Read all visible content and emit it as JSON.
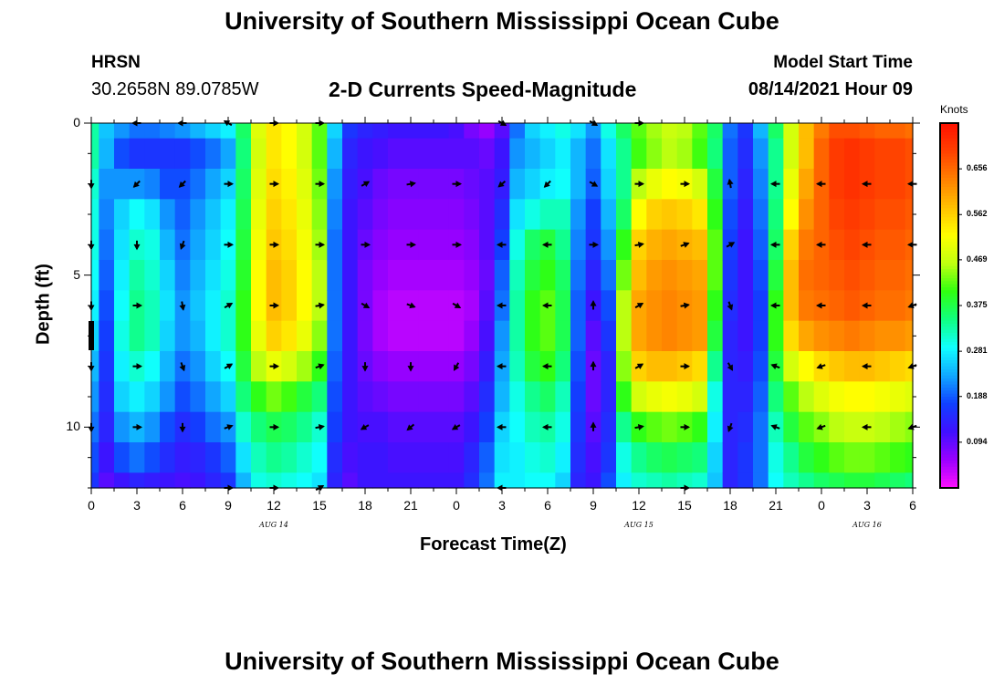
{
  "page": {
    "title_top": "University of Southern Mississippi Ocean Cube",
    "title_bottom": "University of Southern Mississippi Ocean Cube",
    "station_name": "HRSN",
    "station_coords": "30.2658N  89.0785W",
    "model_start_label": "Model Start Time",
    "model_start_value": "08/14/2021 Hour 09",
    "subtitle": "2-D Currents Speed-Magnitude"
  },
  "colors": {
    "palette": [
      "#ff10ff",
      "#9a00ff",
      "#4010ff",
      "#1040ff",
      "#10a8ff",
      "#10ffff",
      "#10ff80",
      "#30ff10",
      "#c0ff10",
      "#ffff00",
      "#ffc000",
      "#ff8000",
      "#ff4000",
      "#ff1000"
    ]
  },
  "chart_data": {
    "type": "heatmap",
    "title": "2-D Currents Speed-Magnitude",
    "xlabel": "Forecast Time(Z)",
    "ylabel": "Depth (ft)",
    "x_tick_labels": [
      "0",
      "3",
      "6",
      "9",
      "12",
      "15",
      "18",
      "21",
      "0",
      "3",
      "6",
      "9",
      "12",
      "15",
      "18",
      "21",
      "0",
      "3",
      "6"
    ],
    "x_range_hours": [
      0,
      54
    ],
    "y_tick_labels": [
      "0",
      "5",
      "10"
    ],
    "y_tick_values": [
      0,
      5,
      10
    ],
    "y_range_ft": [
      0,
      12
    ],
    "date_labels": [
      {
        "text": "AUG  14",
        "hour": 12
      },
      {
        "text": "AUG  15",
        "hour": 36
      },
      {
        "text": "AUG  16",
        "hour": 51
      }
    ],
    "colorbar": {
      "label": "Knots",
      "range": [
        0.0,
        0.75
      ],
      "ticks": [
        "0.656",
        "0.562",
        "0.469",
        "0.375",
        "0.281",
        "0.188",
        "0.094"
      ],
      "tick_values": [
        0.656,
        0.562,
        0.469,
        0.375,
        0.281,
        0.188,
        0.094
      ]
    },
    "depth_rows_ft": [
      0,
      1,
      2,
      3,
      4,
      5,
      6,
      7,
      8,
      9,
      10,
      11,
      12
    ],
    "time_cols_hours": [
      0,
      1,
      2,
      3,
      4,
      5,
      6,
      7,
      8,
      9,
      10,
      11,
      12,
      13,
      14,
      15,
      16,
      17,
      18,
      19,
      20,
      21,
      22,
      23,
      24,
      25,
      26,
      27,
      28,
      29,
      30,
      31,
      32,
      33,
      34,
      35,
      36,
      37,
      38,
      39,
      40,
      41,
      42,
      43,
      44,
      45,
      46,
      47,
      48,
      49,
      50,
      51,
      52,
      53,
      54
    ],
    "speed_by_column_surface_to_bottom": [
      [
        0.33,
        0.33,
        0.31,
        0.3,
        0.3,
        0.29,
        0.28,
        0.26,
        0.24,
        0.22,
        0.2,
        0.18,
        0.16
      ],
      [
        0.25,
        0.24,
        0.22,
        0.21,
        0.2,
        0.19,
        0.18,
        0.17,
        0.16,
        0.15,
        0.14,
        0.12,
        0.1
      ],
      [
        0.22,
        0.18,
        0.22,
        0.26,
        0.27,
        0.28,
        0.29,
        0.3,
        0.28,
        0.26,
        0.22,
        0.18,
        0.12
      ],
      [
        0.2,
        0.16,
        0.22,
        0.29,
        0.31,
        0.33,
        0.34,
        0.34,
        0.31,
        0.28,
        0.24,
        0.2,
        0.14
      ],
      [
        0.2,
        0.16,
        0.21,
        0.27,
        0.3,
        0.31,
        0.32,
        0.32,
        0.29,
        0.26,
        0.22,
        0.18,
        0.13
      ],
      [
        0.21,
        0.16,
        0.18,
        0.22,
        0.24,
        0.26,
        0.27,
        0.26,
        0.24,
        0.22,
        0.18,
        0.15,
        0.12
      ],
      [
        0.22,
        0.16,
        0.18,
        0.19,
        0.2,
        0.21,
        0.22,
        0.22,
        0.2,
        0.18,
        0.15,
        0.13,
        0.11
      ],
      [
        0.24,
        0.18,
        0.2,
        0.22,
        0.23,
        0.24,
        0.25,
        0.24,
        0.22,
        0.2,
        0.17,
        0.14,
        0.12
      ],
      [
        0.26,
        0.2,
        0.23,
        0.25,
        0.26,
        0.27,
        0.28,
        0.28,
        0.26,
        0.23,
        0.2,
        0.16,
        0.14
      ],
      [
        0.28,
        0.23,
        0.26,
        0.28,
        0.29,
        0.3,
        0.31,
        0.31,
        0.29,
        0.26,
        0.22,
        0.19,
        0.16
      ],
      [
        0.36,
        0.35,
        0.36,
        0.37,
        0.38,
        0.39,
        0.4,
        0.4,
        0.38,
        0.35,
        0.31,
        0.27,
        0.24
      ],
      [
        0.49,
        0.48,
        0.49,
        0.5,
        0.51,
        0.52,
        0.52,
        0.5,
        0.46,
        0.4,
        0.35,
        0.32,
        0.3
      ],
      [
        0.54,
        0.54,
        0.55,
        0.56,
        0.57,
        0.58,
        0.58,
        0.56,
        0.5,
        0.43,
        0.37,
        0.34,
        0.31
      ],
      [
        0.52,
        0.52,
        0.53,
        0.54,
        0.55,
        0.56,
        0.56,
        0.54,
        0.48,
        0.41,
        0.36,
        0.33,
        0.3
      ],
      [
        0.48,
        0.48,
        0.49,
        0.5,
        0.51,
        0.52,
        0.52,
        0.5,
        0.45,
        0.38,
        0.34,
        0.31,
        0.29
      ],
      [
        0.42,
        0.42,
        0.43,
        0.44,
        0.45,
        0.46,
        0.46,
        0.44,
        0.4,
        0.35,
        0.31,
        0.29,
        0.27
      ],
      [
        0.26,
        0.24,
        0.22,
        0.21,
        0.2,
        0.2,
        0.2,
        0.2,
        0.19,
        0.18,
        0.17,
        0.15,
        0.14
      ],
      [
        0.16,
        0.14,
        0.13,
        0.12,
        0.12,
        0.12,
        0.12,
        0.12,
        0.12,
        0.12,
        0.12,
        0.11,
        0.1
      ],
      [
        0.14,
        0.12,
        0.11,
        0.1,
        0.09,
        0.08,
        0.08,
        0.08,
        0.09,
        0.1,
        0.11,
        0.12,
        0.12
      ],
      [
        0.13,
        0.11,
        0.09,
        0.08,
        0.07,
        0.06,
        0.05,
        0.05,
        0.07,
        0.09,
        0.11,
        0.12,
        0.12
      ],
      [
        0.12,
        0.1,
        0.08,
        0.07,
        0.06,
        0.05,
        0.04,
        0.04,
        0.06,
        0.08,
        0.1,
        0.11,
        0.12
      ],
      [
        0.12,
        0.1,
        0.08,
        0.07,
        0.06,
        0.05,
        0.04,
        0.04,
        0.06,
        0.08,
        0.1,
        0.11,
        0.12
      ],
      [
        0.12,
        0.1,
        0.08,
        0.07,
        0.06,
        0.05,
        0.04,
        0.04,
        0.06,
        0.08,
        0.1,
        0.11,
        0.12
      ],
      [
        0.12,
        0.1,
        0.08,
        0.07,
        0.06,
        0.05,
        0.04,
        0.04,
        0.06,
        0.08,
        0.1,
        0.11,
        0.12
      ],
      [
        0.11,
        0.1,
        0.08,
        0.07,
        0.06,
        0.05,
        0.04,
        0.04,
        0.06,
        0.08,
        0.1,
        0.11,
        0.12
      ],
      [
        0.08,
        0.1,
        0.09,
        0.08,
        0.07,
        0.06,
        0.05,
        0.06,
        0.08,
        0.1,
        0.12,
        0.14,
        0.15
      ],
      [
        0.06,
        0.09,
        0.1,
        0.1,
        0.1,
        0.09,
        0.1,
        0.11,
        0.13,
        0.15,
        0.17,
        0.19,
        0.2
      ],
      [
        0.1,
        0.12,
        0.13,
        0.15,
        0.17,
        0.19,
        0.2,
        0.22,
        0.23,
        0.24,
        0.26,
        0.27,
        0.28
      ],
      [
        0.2,
        0.22,
        0.24,
        0.27,
        0.3,
        0.32,
        0.33,
        0.33,
        0.32,
        0.3,
        0.29,
        0.28,
        0.28
      ],
      [
        0.26,
        0.24,
        0.26,
        0.3,
        0.36,
        0.38,
        0.4,
        0.4,
        0.38,
        0.34,
        0.32,
        0.3,
        0.29
      ],
      [
        0.28,
        0.26,
        0.28,
        0.32,
        0.38,
        0.4,
        0.42,
        0.42,
        0.4,
        0.36,
        0.33,
        0.31,
        0.29
      ],
      [
        0.3,
        0.28,
        0.29,
        0.32,
        0.34,
        0.36,
        0.37,
        0.37,
        0.35,
        0.32,
        0.3,
        0.28,
        0.26
      ],
      [
        0.27,
        0.24,
        0.24,
        0.22,
        0.21,
        0.2,
        0.19,
        0.19,
        0.18,
        0.17,
        0.16,
        0.15,
        0.14
      ],
      [
        0.22,
        0.2,
        0.19,
        0.17,
        0.16,
        0.14,
        0.12,
        0.1,
        0.09,
        0.09,
        0.1,
        0.11,
        0.12
      ],
      [
        0.3,
        0.27,
        0.26,
        0.24,
        0.22,
        0.2,
        0.18,
        0.16,
        0.14,
        0.14,
        0.15,
        0.16,
        0.18
      ],
      [
        0.36,
        0.34,
        0.34,
        0.36,
        0.4,
        0.43,
        0.46,
        0.46,
        0.44,
        0.4,
        0.34,
        0.3,
        0.28
      ],
      [
        0.42,
        0.41,
        0.46,
        0.52,
        0.56,
        0.58,
        0.6,
        0.6,
        0.56,
        0.48,
        0.4,
        0.34,
        0.31
      ],
      [
        0.45,
        0.44,
        0.5,
        0.56,
        0.59,
        0.61,
        0.62,
        0.62,
        0.58,
        0.5,
        0.42,
        0.36,
        0.32
      ],
      [
        0.47,
        0.46,
        0.52,
        0.57,
        0.6,
        0.62,
        0.63,
        0.63,
        0.58,
        0.51,
        0.43,
        0.37,
        0.33
      ],
      [
        0.46,
        0.45,
        0.51,
        0.56,
        0.59,
        0.61,
        0.62,
        0.62,
        0.57,
        0.5,
        0.42,
        0.36,
        0.32
      ],
      [
        0.42,
        0.41,
        0.48,
        0.54,
        0.58,
        0.6,
        0.61,
        0.61,
        0.55,
        0.48,
        0.4,
        0.35,
        0.31
      ],
      [
        0.36,
        0.35,
        0.38,
        0.4,
        0.42,
        0.42,
        0.4,
        0.38,
        0.34,
        0.3,
        0.28,
        0.26,
        0.25
      ],
      [
        0.2,
        0.19,
        0.19,
        0.18,
        0.17,
        0.16,
        0.15,
        0.14,
        0.14,
        0.14,
        0.14,
        0.14,
        0.14
      ],
      [
        0.16,
        0.15,
        0.14,
        0.13,
        0.12,
        0.12,
        0.12,
        0.12,
        0.13,
        0.14,
        0.15,
        0.16,
        0.16
      ],
      [
        0.24,
        0.22,
        0.21,
        0.2,
        0.19,
        0.18,
        0.17,
        0.17,
        0.18,
        0.19,
        0.2,
        0.2,
        0.2
      ],
      [
        0.36,
        0.34,
        0.34,
        0.35,
        0.36,
        0.38,
        0.4,
        0.4,
        0.38,
        0.35,
        0.32,
        0.3,
        0.29
      ],
      [
        0.48,
        0.48,
        0.5,
        0.52,
        0.56,
        0.58,
        0.58,
        0.55,
        0.48,
        0.42,
        0.38,
        0.34,
        0.32
      ],
      [
        0.58,
        0.58,
        0.6,
        0.62,
        0.64,
        0.65,
        0.64,
        0.6,
        0.52,
        0.46,
        0.42,
        0.38,
        0.34
      ],
      [
        0.64,
        0.66,
        0.66,
        0.66,
        0.66,
        0.66,
        0.65,
        0.62,
        0.55,
        0.49,
        0.44,
        0.4,
        0.36
      ],
      [
        0.68,
        0.7,
        0.7,
        0.69,
        0.68,
        0.67,
        0.66,
        0.63,
        0.57,
        0.51,
        0.46,
        0.42,
        0.37
      ],
      [
        0.68,
        0.71,
        0.71,
        0.7,
        0.69,
        0.68,
        0.67,
        0.64,
        0.58,
        0.52,
        0.47,
        0.43,
        0.38
      ],
      [
        0.67,
        0.7,
        0.7,
        0.69,
        0.68,
        0.67,
        0.66,
        0.63,
        0.58,
        0.52,
        0.47,
        0.43,
        0.38
      ],
      [
        0.66,
        0.69,
        0.69,
        0.68,
        0.67,
        0.66,
        0.65,
        0.62,
        0.57,
        0.51,
        0.46,
        0.42,
        0.37
      ],
      [
        0.66,
        0.69,
        0.69,
        0.68,
        0.67,
        0.66,
        0.65,
        0.62,
        0.56,
        0.5,
        0.45,
        0.41,
        0.36
      ],
      [
        0.65,
        0.68,
        0.68,
        0.67,
        0.66,
        0.65,
        0.64,
        0.61,
        0.55,
        0.49,
        0.44,
        0.4,
        0.35
      ]
    ],
    "vector_depths_ft": [
      0,
      2,
      4,
      6,
      8,
      10,
      12
    ],
    "vector_times_hours": [
      0,
      3,
      6,
      9,
      12,
      15,
      18,
      21,
      24,
      27,
      30,
      33,
      36,
      39,
      42,
      45,
      48,
      51,
      54
    ],
    "direction_deg_by_time_surface_to_bottom": [
      [
        null,
        180,
        180,
        180,
        180,
        180,
        null
      ],
      [
        270,
        225,
        180,
        90,
        90,
        90,
        null
      ],
      [
        270,
        225,
        200,
        170,
        160,
        180,
        null
      ],
      [
        300,
        90,
        90,
        60,
        60,
        70,
        90
      ],
      [
        90,
        90,
        90,
        90,
        90,
        90,
        90
      ],
      [
        90,
        90,
        90,
        80,
        70,
        80,
        60
      ],
      [
        null,
        60,
        90,
        120,
        180,
        240,
        null
      ],
      [
        null,
        80,
        90,
        110,
        180,
        230,
        null
      ],
      [
        null,
        90,
        90,
        120,
        210,
        240,
        null
      ],
      [
        120,
        230,
        270,
        270,
        270,
        270,
        270
      ],
      [
        null,
        225,
        270,
        270,
        270,
        270,
        null
      ],
      [
        120,
        120,
        90,
        0,
        0,
        0,
        null
      ],
      [
        90,
        90,
        80,
        60,
        60,
        80,
        null
      ],
      [
        null,
        90,
        70,
        80,
        90,
        90,
        90
      ],
      [
        null,
        350,
        60,
        160,
        150,
        200,
        null
      ],
      [
        null,
        270,
        270,
        270,
        290,
        290,
        null
      ],
      [
        null,
        270,
        270,
        270,
        250,
        250,
        null
      ],
      [
        null,
        270,
        270,
        270,
        270,
        270,
        null
      ],
      [
        null,
        270,
        270,
        250,
        250,
        250,
        null
      ]
    ]
  }
}
